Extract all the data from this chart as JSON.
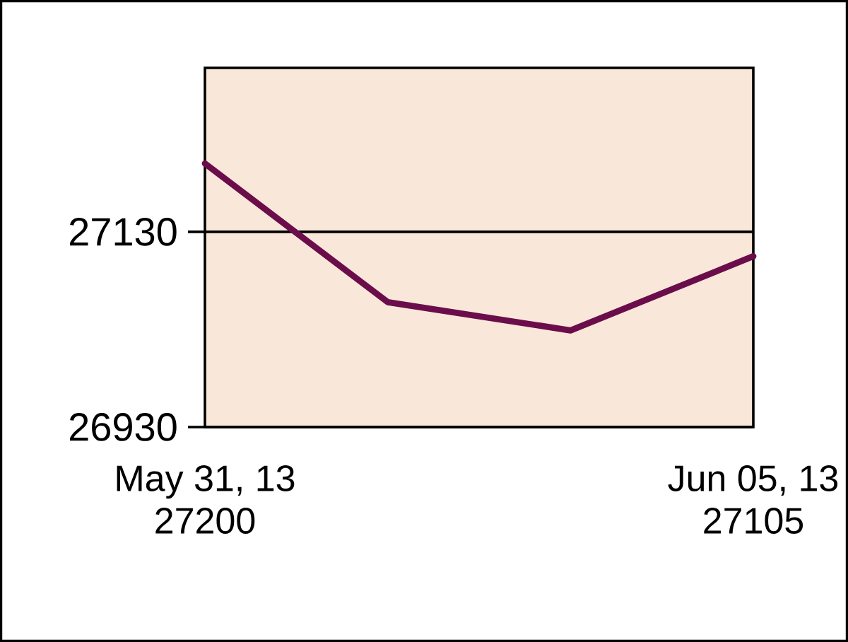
{
  "chart_data": {
    "type": "line",
    "categories": [
      "May 31, 13",
      null,
      null,
      "Jun 05, 13"
    ],
    "series": [
      {
        "color": "#6b0d4b",
        "values": [
          27200,
          27058,
          27029,
          27105
        ],
        "value_labels": [
          "27200",
          null,
          null,
          "27105"
        ]
      }
    ],
    "ylim": [
      26930,
      27298
    ],
    "yticks": [
      26930,
      27130
    ],
    "grid": "y",
    "marker": "none",
    "line_style": "solid"
  }
}
